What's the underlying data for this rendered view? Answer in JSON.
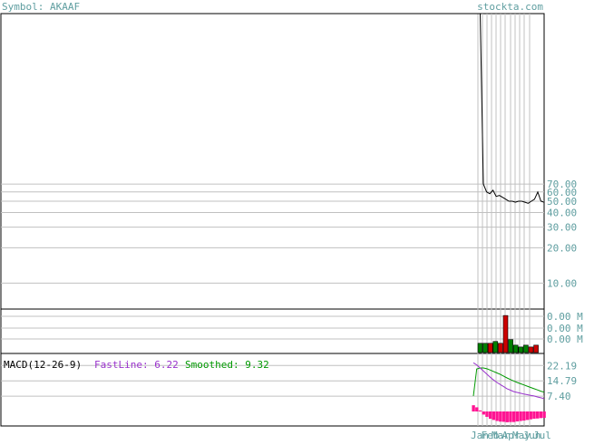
{
  "header": {
    "symbol_label": "Symbol: AKAAF",
    "site": "stockta.com"
  },
  "colors": {
    "axis_text": "#5f9ea0",
    "frame": "#000000",
    "grid": "#c0c0c0",
    "price_line": "#000000",
    "volume_up": "#008000",
    "volume_down": "#cc0000",
    "macd_fast": "#9932cc",
    "macd_smooth": "#009900",
    "macd_hist": "#ff1493",
    "macd_label": "#000000"
  },
  "chart_data": [
    {
      "type": "line",
      "name": "price",
      "scale": "log",
      "ylim": [
        6,
        2000
      ],
      "yticks": [
        10,
        20,
        30,
        40,
        50,
        60,
        70
      ],
      "ytick_labels": [
        "10.00",
        "20.00",
        "30.00",
        "40.00",
        "50.00",
        "60.00",
        "70.00"
      ],
      "values": [
        2000,
        2000,
        70,
        60,
        58,
        62,
        55,
        56,
        54,
        52,
        50,
        50,
        49,
        50,
        50,
        49,
        48,
        50,
        52,
        60,
        50,
        49
      ]
    },
    {
      "type": "bar",
      "name": "volume",
      "ytick_labels": [
        "0.00 M",
        "0.00 M",
        "0.00 M"
      ],
      "ylim": [
        0,
        1.15
      ],
      "values": [
        0.25,
        0.25,
        0.25,
        0.3,
        0.25,
        1.0,
        0.35,
        0.2,
        0.15,
        0.2,
        0.15,
        0.2
      ],
      "colors": [
        "up",
        "up",
        "down",
        "up",
        "down",
        "down",
        "up",
        "up",
        "up",
        "up",
        "down",
        "down"
      ]
    },
    {
      "type": "line",
      "name": "macd",
      "label": "MACD(12-26-9)",
      "fast_label": "FastLine: 6.22",
      "smooth_label": "Smoothed: 9.32",
      "ylim": [
        0,
        27
      ],
      "ytick_labels": [
        "22.19",
        "14.79",
        "7.40"
      ],
      "yticks": [
        22.19,
        14.79,
        7.4
      ],
      "fast": [
        23.5,
        22.5,
        21.0,
        19.5,
        18.0,
        16.5,
        15.2,
        14.0,
        13.0,
        12.0,
        11.0,
        10.3,
        9.6,
        9.2,
        8.8,
        8.4,
        8.1,
        7.8,
        7.5,
        7.0,
        6.6,
        6.22
      ],
      "smooth": [
        7.5,
        20.5,
        21.0,
        21.0,
        20.6,
        20.0,
        19.3,
        18.6,
        17.9,
        17.0,
        16.2,
        15.4,
        14.7,
        14.0,
        13.4,
        12.8,
        12.2,
        11.6,
        11.0,
        10.4,
        9.8,
        9.32
      ],
      "hist": [
        3.0,
        2.0,
        0.5,
        -1.5,
        -2.6,
        -3.5,
        -4.1,
        -4.6,
        -4.9,
        -5.0,
        -5.2,
        -5.1,
        -5.1,
        -4.8,
        -4.6,
        -4.4,
        -4.1,
        -3.8,
        -3.5,
        -3.4,
        -3.2,
        -3.1
      ],
      "xtick_labels": [
        "Jan",
        "Feb",
        "Mar",
        "Apr",
        "May",
        "Jun",
        "Jul"
      ]
    }
  ]
}
